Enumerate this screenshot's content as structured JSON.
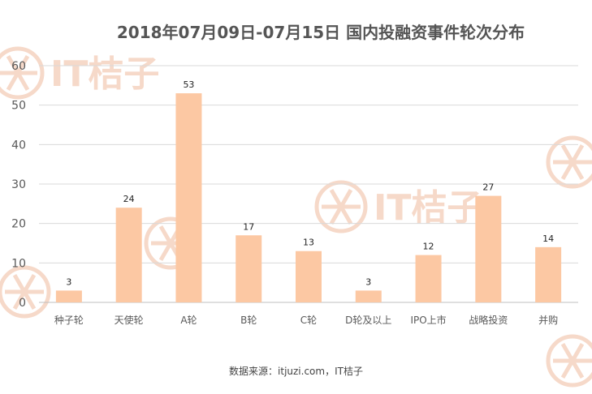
{
  "chart_data": {
    "type": "bar",
    "title": "2018年07月09日-07月15日  国内投融资事件轮次分布",
    "categories": [
      "种子轮",
      "天使轮",
      "A轮",
      "B轮",
      "C轮",
      "D轮及以上",
      "IPO上市",
      "战略投资",
      "并购"
    ],
    "values": [
      3,
      24,
      53,
      17,
      13,
      3,
      12,
      27,
      14
    ],
    "ylim": [
      0,
      60
    ],
    "yticks": [
      0,
      10,
      20,
      30,
      40,
      50,
      60
    ],
    "grid": true,
    "bar_color": "#fcc8a3"
  },
  "footer": {
    "source": "数据来源：itjuzi.com，IT桔子"
  },
  "watermark": {
    "text": "IT桔子",
    "color": "#f6d9c9"
  }
}
